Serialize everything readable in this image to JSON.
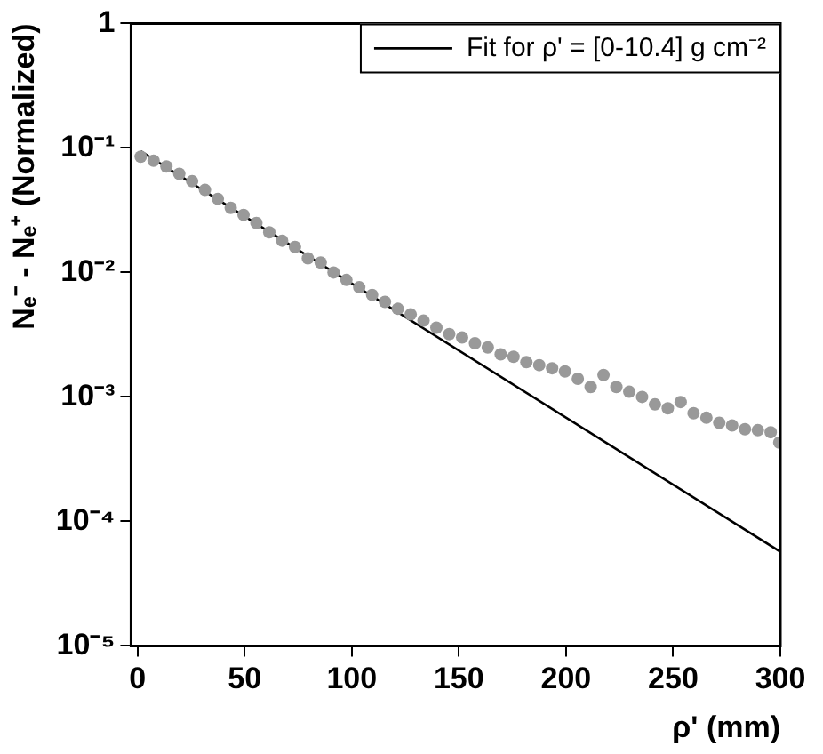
{
  "chart_data": {
    "type": "scatter",
    "xlabel": "ρ' (mm)",
    "ylabel": "Nₑ⁻ - Nₑ⁺ (Normalized)",
    "series": [
      {
        "color": "#999999",
        "marker": "circle",
        "x": [
          1.5,
          7.5,
          13.5,
          19.5,
          25.5,
          31.5,
          37.5,
          43.5,
          49.5,
          55.5,
          61.5,
          67.5,
          73.5,
          79.5,
          85.5,
          91.5,
          97.5,
          103.5,
          109.5,
          115.5,
          121.5,
          127.5,
          133.5,
          139.5,
          145.5,
          151.5,
          157.5,
          163.5,
          169.5,
          175.5,
          181.5,
          187.5,
          193.5,
          199.5,
          205.5,
          211.5,
          217.5,
          223.5,
          229.5,
          235.5,
          241.5,
          247.5,
          253.5,
          259.5,
          265.5,
          271.5,
          277.5,
          283.5,
          289.5,
          295.5,
          299.5
        ],
        "values": [
          0.085,
          0.079,
          0.071,
          0.062,
          0.054,
          0.046,
          0.039,
          0.033,
          0.029,
          0.025,
          0.021,
          0.018,
          0.016,
          0.013,
          0.012,
          0.01,
          0.0087,
          0.0076,
          0.0066,
          0.0058,
          0.0051,
          0.0046,
          0.0041,
          0.0036,
          0.0032,
          0.003,
          0.0027,
          0.0025,
          0.0022,
          0.0021,
          0.0019,
          0.0018,
          0.0017,
          0.0016,
          0.0014,
          0.0012,
          0.0015,
          0.0012,
          0.0011,
          0.001,
          0.00087,
          0.00081,
          0.00091,
          0.00074,
          0.00068,
          0.00062,
          0.00059,
          0.00055,
          0.00054,
          0.00052,
          0.00043
        ]
      },
      {
        "type": "line",
        "name": "Fit for ρ' = [0-10.4] g cm⁻²",
        "color": "#000000",
        "line_style": "solid",
        "x": [
          1.5,
          300
        ],
        "values": [
          0.094,
          5.7e-05
        ]
      }
    ],
    "xlim": [
      -3,
      300
    ],
    "xticks": [
      0,
      50,
      100,
      150,
      200,
      250,
      300
    ],
    "ylim": [
      1e-05,
      1
    ],
    "yticks": [
      {
        "value": 1e-05,
        "label": "10⁻⁵"
      },
      {
        "value": 0.0001,
        "label": "10⁻⁴"
      },
      {
        "value": 0.001,
        "label": "10⁻³"
      },
      {
        "value": 0.01,
        "label": "10⁻²"
      },
      {
        "value": 0.1,
        "label": "10⁻¹"
      },
      1
    ],
    "log": "y",
    "grid": false,
    "legend": "top right"
  }
}
